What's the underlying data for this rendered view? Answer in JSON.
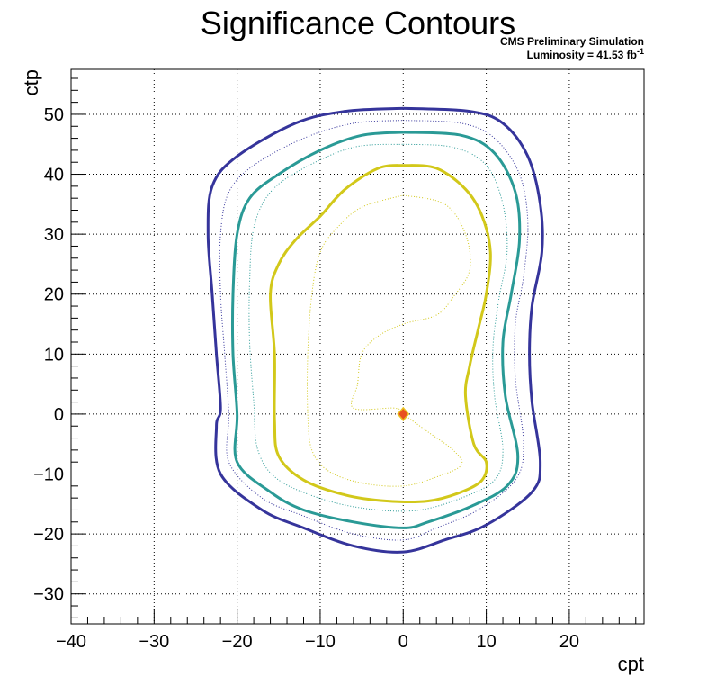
{
  "chart_data": {
    "type": "contour",
    "title": "Significance Contours",
    "annotations": {
      "line1": "CMS Preliminary Simulation",
      "line2": "Luminosity = 41.53 fb",
      "line2_sup": "-1"
    },
    "xlabel": "cpt",
    "ylabel": "ctp",
    "xlim": [
      -40,
      29
    ],
    "ylim": [
      -35,
      57.5
    ],
    "xticks": [
      -40,
      -30,
      -20,
      -10,
      0,
      10,
      20
    ],
    "yticks": [
      -30,
      -20,
      -10,
      0,
      10,
      20,
      30,
      40,
      50
    ],
    "xtick_labels": [
      "−40",
      "−30",
      "−20",
      "−10",
      "0",
      "10",
      "20"
    ],
    "ytick_labels": [
      "−30",
      "−20",
      "−10",
      "0",
      "10",
      "20",
      "30",
      "40",
      "50"
    ],
    "grid": true,
    "best_fit_point": {
      "x": 0,
      "y": 0,
      "color": "#e8511f",
      "edge_color": "#e8c21f"
    },
    "contours": [
      {
        "color": "#35349b",
        "style": "solid",
        "points": [
          [
            0,
            51
          ],
          [
            8,
            50.5
          ],
          [
            12,
            48.5
          ],
          [
            15,
            43
          ],
          [
            16.5,
            35
          ],
          [
            16.7,
            27
          ],
          [
            15.5,
            18
          ],
          [
            15.2,
            10
          ],
          [
            15.5,
            2
          ],
          [
            16.5,
            -8
          ],
          [
            15.5,
            -13
          ],
          [
            10,
            -18.5
          ],
          [
            5,
            -21
          ],
          [
            0,
            -23
          ],
          [
            -6,
            -22
          ],
          [
            -12,
            -19
          ],
          [
            -17,
            -16
          ],
          [
            -22,
            -10
          ],
          [
            -22.5,
            -2
          ],
          [
            -22,
            1
          ],
          [
            -22.5,
            10
          ],
          [
            -23,
            20
          ],
          [
            -23.5,
            30
          ],
          [
            -23,
            38
          ],
          [
            -20,
            43
          ],
          [
            -13,
            48.5
          ],
          [
            -7,
            50.5
          ],
          [
            0,
            51
          ]
        ]
      },
      {
        "color": "#35349b",
        "style": "dotted",
        "points": [
          [
            0,
            49
          ],
          [
            7,
            48.5
          ],
          [
            11,
            46
          ],
          [
            14,
            40
          ],
          [
            15,
            32
          ],
          [
            14.5,
            23
          ],
          [
            13.5,
            15
          ],
          [
            13.5,
            6
          ],
          [
            14.5,
            -5
          ],
          [
            13.5,
            -11
          ],
          [
            9,
            -16
          ],
          [
            4,
            -19
          ],
          [
            0,
            -21
          ],
          [
            -6,
            -20
          ],
          [
            -12,
            -17
          ],
          [
            -17,
            -14
          ],
          [
            -21,
            -8
          ],
          [
            -21,
            0
          ],
          [
            -21.5,
            10
          ],
          [
            -22,
            20
          ],
          [
            -22,
            30
          ],
          [
            -21,
            37
          ],
          [
            -18,
            41.5
          ],
          [
            -12,
            46
          ],
          [
            -6,
            48.5
          ],
          [
            0,
            49
          ]
        ]
      },
      {
        "color": "#2a9a96",
        "style": "solid",
        "points": [
          [
            0,
            47
          ],
          [
            7,
            46.5
          ],
          [
            11,
            43.5
          ],
          [
            13.5,
            37
          ],
          [
            14,
            29
          ],
          [
            13,
            20
          ],
          [
            12,
            12
          ],
          [
            12.3,
            3
          ],
          [
            13.8,
            -7
          ],
          [
            12.5,
            -12
          ],
          [
            8,
            -15.5
          ],
          [
            3,
            -18
          ],
          [
            0,
            -19
          ],
          [
            -6,
            -18
          ],
          [
            -12,
            -16
          ],
          [
            -16,
            -13
          ],
          [
            -20,
            -8
          ],
          [
            -20,
            0
          ],
          [
            -20.5,
            10
          ],
          [
            -20.5,
            20
          ],
          [
            -20,
            30
          ],
          [
            -18.5,
            36
          ],
          [
            -15,
            40
          ],
          [
            -10,
            44
          ],
          [
            -5,
            46.5
          ],
          [
            0,
            47
          ]
        ]
      },
      {
        "color": "#2a9a96",
        "style": "dotted",
        "points": [
          [
            0,
            45
          ],
          [
            6,
            44.5
          ],
          [
            10,
            41.5
          ],
          [
            12,
            35
          ],
          [
            12.5,
            27
          ],
          [
            11.5,
            19
          ],
          [
            10.8,
            11
          ],
          [
            11,
            3
          ],
          [
            12,
            -6
          ],
          [
            11,
            -11
          ],
          [
            7,
            -14
          ],
          [
            2,
            -16
          ],
          [
            -3,
            -16
          ],
          [
            -9,
            -14.5
          ],
          [
            -15,
            -11
          ],
          [
            -17.5,
            -6
          ],
          [
            -18,
            2
          ],
          [
            -18.5,
            12
          ],
          [
            -18.5,
            22
          ],
          [
            -18,
            31
          ],
          [
            -16,
            37
          ],
          [
            -12,
            41
          ],
          [
            -6,
            44.5
          ],
          [
            0,
            45
          ]
        ]
      },
      {
        "color": "#d2c81a",
        "style": "solid",
        "points": [
          [
            0,
            41.5
          ],
          [
            4,
            41
          ],
          [
            7.5,
            37.5
          ],
          [
            9.5,
            33
          ],
          [
            10.5,
            27
          ],
          [
            10,
            20
          ],
          [
            9,
            14
          ],
          [
            8,
            8
          ],
          [
            7.5,
            3
          ],
          [
            8.5,
            -5
          ],
          [
            10,
            -8
          ],
          [
            9.5,
            -11
          ],
          [
            7,
            -13
          ],
          [
            3,
            -14.5
          ],
          [
            -2,
            -14.5
          ],
          [
            -7,
            -13.5
          ],
          [
            -12,
            -11
          ],
          [
            -15,
            -7
          ],
          [
            -15.5,
            -1
          ],
          [
            -15.5,
            10
          ],
          [
            -16,
            20
          ],
          [
            -15,
            25
          ],
          [
            -13,
            29
          ],
          [
            -10,
            33
          ],
          [
            -7,
            37.5
          ],
          [
            -3,
            41
          ],
          [
            0,
            41.5
          ]
        ]
      },
      {
        "color": "#d2c81a",
        "style": "dotted",
        "points": [
          [
            0,
            36.5
          ],
          [
            5,
            35
          ],
          [
            7.5,
            30
          ],
          [
            8,
            24
          ],
          [
            6,
            19.5
          ],
          [
            4,
            16.5
          ],
          [
            0,
            15
          ],
          [
            -3,
            13
          ],
          [
            -5,
            10
          ],
          [
            -5.5,
            5
          ],
          [
            -6,
            1
          ],
          [
            -1,
            1
          ],
          [
            0,
            0
          ],
          [
            3,
            -3
          ],
          [
            6,
            -6
          ],
          [
            7,
            -8.5
          ],
          [
            4,
            -10.5
          ],
          [
            0,
            -12
          ],
          [
            -5,
            -11.5
          ],
          [
            -9,
            -9.5
          ],
          [
            -11,
            -6
          ],
          [
            -11.5,
            0
          ],
          [
            -11.5,
            10
          ],
          [
            -11,
            20
          ],
          [
            -10,
            27
          ],
          [
            -8,
            31
          ],
          [
            -5,
            34.5
          ],
          [
            0,
            36.5
          ]
        ]
      }
    ]
  }
}
